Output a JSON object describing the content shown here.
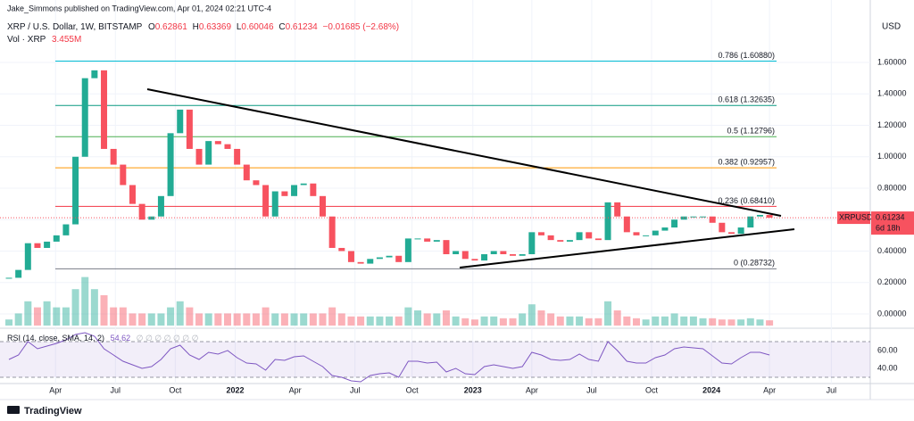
{
  "chart_data": {
    "type": "candlestick",
    "author": "Jake_Simmons published on TradingView.com, Apr 01, 2024 02:21 UTC-4",
    "symbol": "XRP / U.S. Dollar, 1W, BITSTAMP",
    "ohlc": {
      "o_label": "O",
      "o": 0.62861,
      "h_label": "H",
      "h": 0.63369,
      "l_label": "L",
      "l": 0.60046,
      "c_label": "C",
      "c": 0.61234,
      "change": "−0.01685 (−2.68%)"
    },
    "volume_title": "Vol · XRP",
    "volume_last": "3.455M",
    "currency": "USD",
    "price_tag": {
      "symbol": "XRPUSD",
      "price": 0.61234,
      "countdown": "6d 18h"
    },
    "up_color": "#22ab94",
    "down_color": "#f7525f",
    "close": [
      0.23,
      0.28,
      0.45,
      0.42,
      0.46,
      0.5,
      0.57,
      1.0,
      1.5,
      1.55,
      1.05,
      0.95,
      0.82,
      0.7,
      0.6,
      0.62,
      0.75,
      1.15,
      1.3,
      1.05,
      0.95,
      1.1,
      1.08,
      1.05,
      0.95,
      0.85,
      0.82,
      0.62,
      0.78,
      0.75,
      0.82,
      0.83,
      0.75,
      0.62,
      0.42,
      0.4,
      0.33,
      0.32,
      0.35,
      0.36,
      0.37,
      0.33,
      0.48,
      0.48,
      0.46,
      0.47,
      0.38,
      0.4,
      0.35,
      0.34,
      0.38,
      0.4,
      0.38,
      0.37,
      0.38,
      0.52,
      0.5,
      0.47,
      0.46,
      0.47,
      0.52,
      0.48,
      0.47,
      0.71,
      0.62,
      0.52,
      0.5,
      0.5,
      0.53,
      0.55,
      0.6,
      0.62,
      0.62,
      0.62,
      0.58,
      0.52,
      0.51,
      0.55,
      0.62,
      0.63,
      0.61234
    ],
    "volume": [
      4,
      8,
      16,
      12,
      16,
      12,
      12,
      24,
      32,
      24,
      20,
      12,
      12,
      8,
      8,
      8,
      8,
      12,
      16,
      12,
      8,
      8,
      8,
      8,
      8,
      8,
      8,
      12,
      8,
      8,
      8,
      8,
      8,
      8,
      12,
      8,
      6,
      6,
      6,
      6,
      6,
      6,
      12,
      10,
      8,
      8,
      10,
      6,
      4.8,
      4,
      6,
      6,
      4.8,
      4.8,
      8,
      14,
      10,
      8,
      6,
      6,
      6,
      4.8,
      4.8,
      16,
      10,
      6,
      4.8,
      4,
      6,
      6,
      8,
      6,
      6,
      4.8,
      4.8,
      4,
      4,
      4,
      4.8,
      4,
      3.455
    ],
    "xlim": [
      -0.94,
      90.6
    ],
    "xticks": [
      {
        "value": 4.9,
        "label": "Apr"
      },
      {
        "value": 11.2,
        "label": "Jul"
      },
      {
        "value": 17.5,
        "label": "Oct"
      },
      {
        "value": 23.8,
        "label": "2022"
      },
      {
        "value": 30.1,
        "label": "Apr"
      },
      {
        "value": 36.4,
        "label": "Jul"
      },
      {
        "value": 42.4,
        "label": "Oct"
      },
      {
        "value": 48.8,
        "label": "2023"
      },
      {
        "value": 55.0,
        "label": "Apr"
      },
      {
        "value": 61.3,
        "label": "Jul"
      },
      {
        "value": 67.6,
        "label": "Oct"
      },
      {
        "value": 73.9,
        "label": "2024"
      },
      {
        "value": 80.0,
        "label": "Apr"
      },
      {
        "value": 86.5,
        "label": "Jul"
      }
    ],
    "ylim": [
      -0.074,
      1.884
    ],
    "yticks": [
      {
        "value": 0,
        "label": "0.00000"
      },
      {
        "value": 0.2,
        "label": "0.20000"
      },
      {
        "value": 0.4,
        "label": "0.40000"
      },
      {
        "value": 0.6,
        "label": "0.60000"
      },
      {
        "value": 0.8,
        "label": "0.80000"
      },
      {
        "value": 1.0,
        "label": "1.00000"
      },
      {
        "value": 1.2,
        "label": "1.20000"
      },
      {
        "value": 1.4,
        "label": "1.40000"
      },
      {
        "value": 1.6,
        "label": "1.60000"
      }
    ],
    "fib": [
      {
        "label": "0.786 (1.60880)",
        "price": 1.6088,
        "color": "#00bcd4"
      },
      {
        "label": "0.618 (1.32635)",
        "price": 1.32635,
        "color": "#089981"
      },
      {
        "label": "0.5 (1.12796)",
        "price": 1.12796,
        "color": "#4caf50"
      },
      {
        "label": "0.382 (0.92957)",
        "price": 0.92957,
        "color": "#ff9800"
      },
      {
        "label": "0.236 (0.68410)",
        "price": 0.6841,
        "color": "#f23645"
      },
      {
        "label": "0 (0.28732)",
        "price": 0.28732,
        "color": "#787b86"
      }
    ],
    "rsi": {
      "title": "RSI (14, close, SMA, 14, 2)",
      "last": "54.62",
      "empty": "∅ ∅ ∅ ∅ ∅ ∅ ∅",
      "color": "#7e57c2",
      "ylim": [
        25,
        80
      ],
      "yticks": [
        {
          "value": 40,
          "label": "40.00"
        },
        {
          "value": 60,
          "label": "60.00"
        }
      ],
      "band": [
        30,
        70
      ],
      "values": [
        50,
        55,
        70,
        62,
        65,
        68,
        72,
        78,
        80,
        76,
        62,
        55,
        48,
        44,
        40,
        42,
        50,
        62,
        66,
        55,
        50,
        58,
        56,
        60,
        52,
        46,
        45,
        38,
        50,
        49,
        53,
        54,
        48,
        42,
        32,
        30,
        26,
        25,
        32,
        34,
        35,
        30,
        48,
        48,
        46,
        47,
        36,
        40,
        34,
        33,
        42,
        44,
        42,
        40,
        42,
        58,
        55,
        50,
        49,
        50,
        56,
        50,
        48,
        70,
        60,
        48,
        46,
        46,
        52,
        55,
        62,
        64,
        63,
        62,
        54,
        46,
        45,
        52,
        58,
        58,
        55
      ]
    },
    "brand": "TradingView"
  }
}
